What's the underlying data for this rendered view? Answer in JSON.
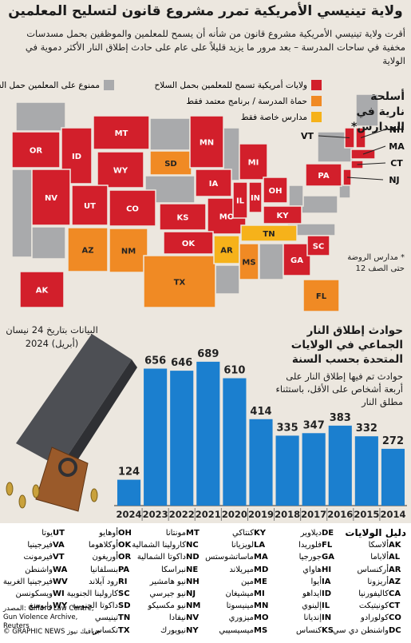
{
  "header": {
    "title": "ولاية تينيسي الأمريكية تمرر مشروع قانون لتسليح المعلمين",
    "subtitle": "أقرت ولاية تينيسي الأمريكية مشروع قانون من شأنه أن يسمح للمعلمين والموظفين بحمل مسدسات مخفية في ساحات المدرسة – بعد مرور ما يزيد قليلاً على عام على حادث إطلاق النار الأكثر دموية في الولاية"
  },
  "map": {
    "title": "أسلحة نارية في المدارس*",
    "note": "* مدارس الروضة حتى الصف 12",
    "legend": [
      {
        "label": "ولايات أمريكية تسمح للمعلمين بحمل السلاح",
        "color": "#d21f2b"
      },
      {
        "label": "ممنوع على المعلمين حمل السلاح",
        "color": "#a9aaac"
      },
      {
        "label": "حماة المدرسة / برنامج معتمد فقط",
        "color": "#f08a24"
      },
      {
        "label": "مدارس خاصة فقط",
        "color": "#f6b21a"
      }
    ],
    "states": [
      {
        "abbr": "OR",
        "color": "#d21f2b"
      },
      {
        "abbr": "ID",
        "color": "#d21f2b"
      },
      {
        "abbr": "MT",
        "color": "#d21f2b"
      },
      {
        "abbr": "WY",
        "color": "#d21f2b"
      },
      {
        "abbr": "NV",
        "color": "#d21f2b"
      },
      {
        "abbr": "UT",
        "color": "#d21f2b"
      },
      {
        "abbr": "CO",
        "color": "#d21f2b"
      },
      {
        "abbr": "SD",
        "color": "#f08a24"
      },
      {
        "abbr": "MN",
        "color": "#d21f2b"
      },
      {
        "abbr": "IA",
        "color": "#d21f2b"
      },
      {
        "abbr": "KS",
        "color": "#d21f2b"
      },
      {
        "abbr": "MO",
        "color": "#d21f2b"
      },
      {
        "abbr": "MI",
        "color": "#d21f2b"
      },
      {
        "abbr": "IL",
        "color": "#d21f2b"
      },
      {
        "abbr": "IN",
        "color": "#d21f2b"
      },
      {
        "abbr": "OH",
        "color": "#d21f2b"
      },
      {
        "abbr": "KY",
        "color": "#d21f2b"
      },
      {
        "abbr": "PA",
        "color": "#d21f2b"
      },
      {
        "abbr": "AZ",
        "color": "#f08a24"
      },
      {
        "abbr": "NM",
        "color": "#f08a24"
      },
      {
        "abbr": "OK",
        "color": "#d21f2b"
      },
      {
        "abbr": "TX",
        "color": "#f08a24"
      },
      {
        "abbr": "AR",
        "color": "#f6b21a"
      },
      {
        "abbr": "TN",
        "color": "#f6b21a"
      },
      {
        "abbr": "MS",
        "color": "#f08a24"
      },
      {
        "abbr": "GA",
        "color": "#d21f2b"
      },
      {
        "abbr": "SC",
        "color": "#d21f2b"
      },
      {
        "abbr": "FL",
        "color": "#f08a24"
      },
      {
        "abbr": "AK",
        "color": "#d21f2b"
      },
      {
        "abbr": "VT",
        "color": "#d21f2b"
      },
      {
        "abbr": "NH",
        "color": "#d21f2b"
      },
      {
        "abbr": "MA",
        "color": "#d21f2b"
      },
      {
        "abbr": "CT",
        "color": "#d21f2b"
      },
      {
        "abbr": "NJ",
        "color": "#d21f2b"
      }
    ]
  },
  "chart_data": {
    "type": "bar",
    "title": "حوادث إطلاق النار الجماعي في الولايات المتحدة بحسب السنة",
    "subtitle": "حوادث تم فيها إطلاق النار على أربعة أشخاص على الأقل، باستثناء مطلق النار",
    "note": "البيانات بتاريخ 24 نيسان (أبريل) 2024",
    "categories": [
      "2024",
      "2023",
      "2022",
      "2021",
      "2020",
      "2019",
      "2018",
      "2017",
      "2016",
      "2015",
      "2014"
    ],
    "values": [
      124,
      656,
      646,
      689,
      610,
      414,
      335,
      347,
      383,
      332,
      272
    ],
    "color": "#1b7fcf",
    "ylim": [
      0,
      700
    ]
  },
  "key": {
    "title": "دليل الولايات",
    "entries": [
      {
        "abbr": "AK",
        "name": "ألاسكا"
      },
      {
        "abbr": "AL",
        "name": "ألاباما"
      },
      {
        "abbr": "AR",
        "name": "أركنساس"
      },
      {
        "abbr": "AZ",
        "name": "أريزونا"
      },
      {
        "abbr": "CA",
        "name": "كاليفورنيا"
      },
      {
        "abbr": "CT",
        "name": "كونيتيكت"
      },
      {
        "abbr": "CO",
        "name": "كولورادو"
      },
      {
        "abbr": "DC",
        "name": "واشنطن دي سي"
      },
      {
        "abbr": "DE",
        "name": "ديلاوير"
      },
      {
        "abbr": "FL",
        "name": "فلوريدا"
      },
      {
        "abbr": "GA",
        "name": "جورجيا"
      },
      {
        "abbr": "HI",
        "name": "هاواي"
      },
      {
        "abbr": "IA",
        "name": "أيوا"
      },
      {
        "abbr": "ID",
        "name": "ايداهو"
      },
      {
        "abbr": "IL",
        "name": "إلينوي"
      },
      {
        "abbr": "IN",
        "name": "إنديانا"
      },
      {
        "abbr": "KS",
        "name": "كنساس"
      },
      {
        "abbr": "KY",
        "name": "كنتاكي"
      },
      {
        "abbr": "LA",
        "name": "لويزيانا"
      },
      {
        "abbr": "MA",
        "name": "ماساتشوستس"
      },
      {
        "abbr": "MD",
        "name": "ميريلاند"
      },
      {
        "abbr": "ME",
        "name": "مين"
      },
      {
        "abbr": "MI",
        "name": "ميشيغان"
      },
      {
        "abbr": "MN",
        "name": "مينيسوتا"
      },
      {
        "abbr": "MO",
        "name": "ميزوري"
      },
      {
        "abbr": "MS",
        "name": "ميسيسيبي"
      },
      {
        "abbr": "MT",
        "name": "مونتانا"
      },
      {
        "abbr": "NC",
        "name": "كارولينا الشمالية"
      },
      {
        "abbr": "ND",
        "name": "داكوتا الشمالية"
      },
      {
        "abbr": "NE",
        "name": "نبراسكا"
      },
      {
        "abbr": "NH",
        "name": "نيو هامشير"
      },
      {
        "abbr": "NJ",
        "name": "نيو جيرسي"
      },
      {
        "abbr": "NM",
        "name": "نيو مكسيكو"
      },
      {
        "abbr": "NV",
        "name": "نيفادا"
      },
      {
        "abbr": "NY",
        "name": "نيويورك"
      },
      {
        "abbr": "OH",
        "name": "أوهايو"
      },
      {
        "abbr": "OK",
        "name": "أوكلاهوما"
      },
      {
        "abbr": "OR",
        "name": "أوريغون"
      },
      {
        "abbr": "PA",
        "name": "بنسلفانيا"
      },
      {
        "abbr": "RI",
        "name": "رود آيلاند"
      },
      {
        "abbr": "SC",
        "name": "كارولينا الجنوبية"
      },
      {
        "abbr": "SD",
        "name": "داكوتا الجنوبية"
      },
      {
        "abbr": "TN",
        "name": "تينيسي"
      },
      {
        "abbr": "TX",
        "name": "تكساس"
      },
      {
        "abbr": "UT",
        "name": "يوتا"
      },
      {
        "abbr": "VA",
        "name": "فيرجينيا"
      },
      {
        "abbr": "VT",
        "name": "فيرمونت"
      },
      {
        "abbr": "WA",
        "name": "واشنطن"
      },
      {
        "abbr": "WV",
        "name": "فيرجينيا الغربية"
      },
      {
        "abbr": "WI",
        "name": "ويسكونسن"
      },
      {
        "abbr": "WY",
        "name": "وايومنغ"
      }
    ],
    "source": "المصدر: Gifford Law Centre, Gun Violence Archive, Reuters",
    "credit": "© GRAPHIC NEWS جرافيك نيوز"
  }
}
